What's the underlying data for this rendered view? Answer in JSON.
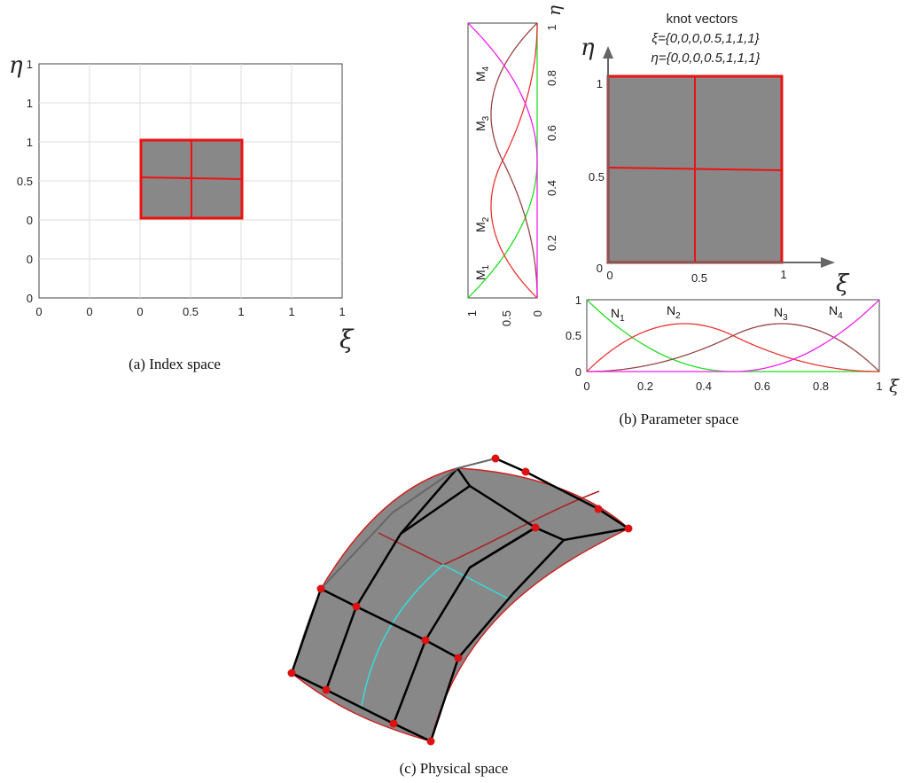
{
  "panel_a": {
    "caption": "(a)  Index space",
    "x_ticks": [
      "0",
      "0",
      "0",
      "0.5",
      "1",
      "1",
      "1"
    ],
    "y_ticks": [
      "1",
      "1",
      "1",
      "0.5",
      "0",
      "0",
      "0"
    ],
    "x_axis_symbol": "ξ",
    "y_axis_symbol": "η"
  },
  "panel_b": {
    "caption": "(b)  Parameter space",
    "knot_title": "knot vectors",
    "knot_xi": "ξ={0,0,0,0.5,1,1,1}",
    "knot_eta": "η={0,0,0,0.5,1,1,1}",
    "domain_x_ticks": [
      "0",
      "0.5",
      "1"
    ],
    "domain_y_ticks": [
      "1",
      "0.5",
      "0"
    ],
    "x_axis_symbol": "ξ",
    "y_axis_symbol": "η",
    "n_plot_x_ticks": [
      "0",
      "0.2",
      "0.4",
      "0.6",
      "0.8",
      "1"
    ],
    "n_plot_y_ticks": [
      "1",
      "0.5",
      "0"
    ],
    "n_plot_axis_symbol": "ξ",
    "m_plot_value_ticks": [
      "1",
      "0.5",
      "0"
    ],
    "m_plot_eta_ticks": [
      "1",
      "0.8",
      "0.6",
      "0.4",
      "0.2"
    ],
    "m_plot_axis_symbol": "η",
    "n_labels": [
      {
        "base": "N",
        "sub": "1"
      },
      {
        "base": "N",
        "sub": "2"
      },
      {
        "base": "N",
        "sub": "3"
      },
      {
        "base": "N",
        "sub": "4"
      }
    ],
    "m_labels": [
      {
        "base": "M",
        "sub": "1"
      },
      {
        "base": "M",
        "sub": "2"
      },
      {
        "base": "M",
        "sub": "3"
      },
      {
        "base": "M",
        "sub": "4"
      }
    ],
    "basis_colors": [
      "#22dd22",
      "#ee3333",
      "#994444",
      "#ee22ee"
    ]
  },
  "panel_c": {
    "caption": "(c)  Physical space"
  },
  "colors": {
    "element_fill": "#888888",
    "boundary": "#ee1111",
    "grid": "#dddddd",
    "control_net": "#000000",
    "control_point": "#dd1111",
    "iso_cyan": "#33dddd",
    "iso_red": "#aa2222"
  }
}
